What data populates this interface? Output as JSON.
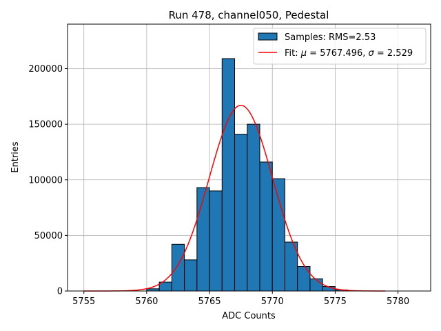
{
  "chart_data": {
    "type": "bar",
    "title": "Run 478, channel050, Pedestal",
    "xlabel": "ADC Counts",
    "ylabel": "Entries",
    "xlim": [
      5753.7,
      5782.6
    ],
    "ylim": [
      0,
      240000
    ],
    "grid": true,
    "legend_position": "top-right",
    "x_ticks": [
      5755,
      5760,
      5765,
      5770,
      5775,
      5780
    ],
    "y_ticks": [
      0,
      50000,
      100000,
      150000,
      200000
    ],
    "x_tick_labels": [
      "5755",
      "5760",
      "5765",
      "5770",
      "5775",
      "5780"
    ],
    "y_tick_labels": [
      "0",
      "50000",
      "100000",
      "150000",
      "200000"
    ],
    "bin_width": 1,
    "bins": [
      {
        "start": 5760,
        "value": 2000
      },
      {
        "start": 5761,
        "value": 8000
      },
      {
        "start": 5762,
        "value": 42000
      },
      {
        "start": 5763,
        "value": 28000
      },
      {
        "start": 5764,
        "value": 93000
      },
      {
        "start": 5765,
        "value": 90000
      },
      {
        "start": 5766,
        "value": 209000
      },
      {
        "start": 5767,
        "value": 141000
      },
      {
        "start": 5768,
        "value": 150000
      },
      {
        "start": 5769,
        "value": 116000
      },
      {
        "start": 5770,
        "value": 101000
      },
      {
        "start": 5771,
        "value": 44000
      },
      {
        "start": 5772,
        "value": 22000
      },
      {
        "start": 5773,
        "value": 11000
      },
      {
        "start": 5774,
        "value": 4000
      },
      {
        "start": 5775,
        "value": 1000
      }
    ],
    "fit": {
      "mu": 5767.496,
      "sigma": 2.529,
      "amplitude": 167000,
      "x_range": [
        5755,
        5779
      ]
    },
    "legend": {
      "samples_label": "Samples: RMS=2.53",
      "fit_label_prefix": "Fit: ",
      "mu_symbol": "μ",
      "mu_text": " = 5767.496, ",
      "sigma_symbol": "σ",
      "sigma_text": " = 2.529"
    },
    "colors": {
      "bar_fill": "#1f77b4",
      "bar_edge": "#000000",
      "fit_line": "#ff0000",
      "grid": "#b0b0b0"
    }
  }
}
